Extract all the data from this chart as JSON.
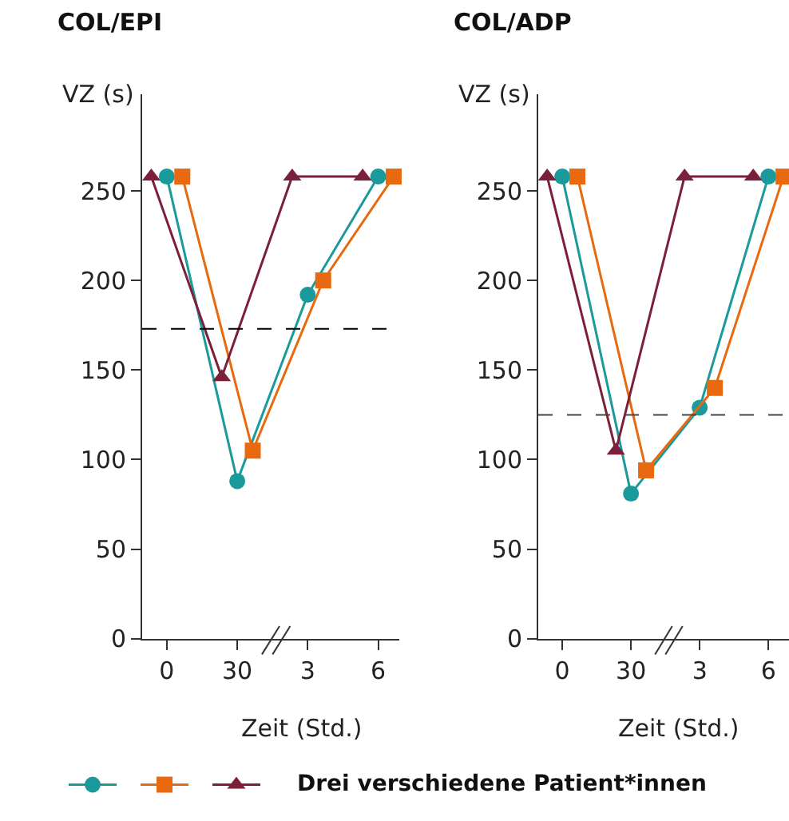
{
  "chart_data": [
    {
      "type": "line",
      "title": "COL/EPI",
      "xlabel": "Zeit (Std.)",
      "ylabel": "VZ (s)",
      "categories": [
        "0",
        "30",
        "3",
        "6"
      ],
      "ylim": [
        0,
        304
      ],
      "yticks": [
        0,
        50,
        100,
        150,
        200,
        250
      ],
      "grid": false,
      "annotations": [
        "Drei verschiedene Patient*innen"
      ],
      "series": [
        {
          "color": "#1a9a9a",
          "marker": "circle",
          "values": [
            258,
            88,
            192,
            258
          ]
        },
        {
          "color": "#e8690f",
          "marker": "square",
          "values": [
            258,
            105,
            200,
            258
          ]
        },
        {
          "color": "#7b1f3a",
          "marker": "triangle",
          "values": [
            258,
            146,
            258,
            258
          ]
        }
      ],
      "ref_lines": [
        {
          "axis": "y",
          "value": 173,
          "color": "#000000",
          "line_style": "dashed"
        }
      ]
    },
    {
      "type": "line",
      "title": "COL/ADP",
      "xlabel": "Zeit (Std.)",
      "ylabel": "VZ (s)",
      "categories": [
        "0",
        "30",
        "3",
        "6"
      ],
      "ylim": [
        0,
        304
      ],
      "yticks": [
        0,
        50,
        100,
        150,
        200,
        250
      ],
      "grid": false,
      "series": [
        {
          "color": "#1a9a9a",
          "marker": "circle",
          "values": [
            258,
            81,
            129,
            258
          ]
        },
        {
          "color": "#e8690f",
          "marker": "square",
          "values": [
            258,
            94,
            140,
            258
          ]
        },
        {
          "color": "#7b1f3a",
          "marker": "triangle",
          "values": [
            258,
            105,
            258,
            258
          ]
        }
      ],
      "ref_lines": [
        {
          "axis": "y",
          "value": 125,
          "color": "#444444",
          "line_style": "dashed"
        }
      ]
    }
  ]
}
